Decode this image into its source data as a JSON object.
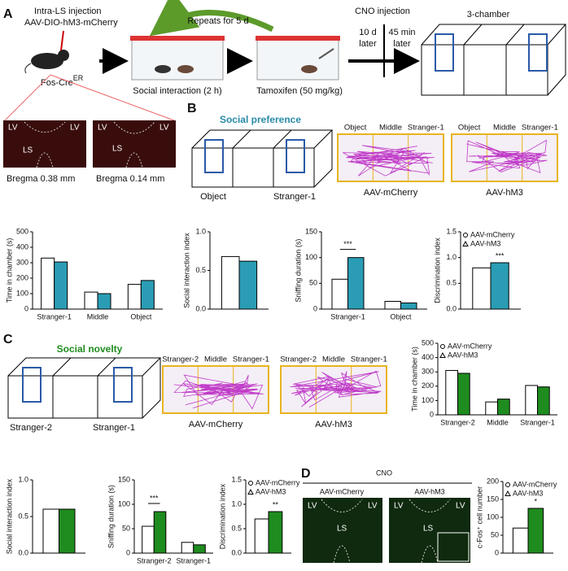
{
  "panel_a": {
    "letter": "A",
    "injection": "Intra-LS injection",
    "virus": "AAV-DIO-hM3-mCherry",
    "mouse_line": "Fos-Cre",
    "mouse_line_sup": "ER",
    "repeats": "Repeats for 5 d",
    "social_interaction": "Social interaction (2 h)",
    "tamoxifen": "Tamoxifen (50 mg/kg)",
    "cno": "CNO injection",
    "delay_1": [
      "10 d",
      "later"
    ],
    "delay_2": [
      "45 min",
      "later"
    ],
    "test": "3-chamber",
    "images": [
      {
        "labels": [
          "LV",
          "LV",
          "LS"
        ],
        "caption": "Bregma 0.38 mm"
      },
      {
        "labels": [
          "LV",
          "LV",
          "LS"
        ],
        "caption": "Bregma 0.14 mm"
      }
    ]
  },
  "panel_b": {
    "letter": "B",
    "title": "Social preference",
    "chambers": [
      "Object",
      "Stranger-1"
    ],
    "tracks": [
      {
        "zones": [
          "Object",
          "Middle",
          "Stranger-1"
        ],
        "caption": "AAV-mCherry"
      },
      {
        "zones": [
          "Object",
          "Middle",
          "Stranger-1"
        ],
        "caption": "AAV-hM3"
      }
    ]
  },
  "panel_c": {
    "letter": "C",
    "title": "Social novelty",
    "chambers": [
      "Stranger-2",
      "Stranger-1"
    ],
    "tracks": [
      {
        "zones": [
          "Stranger-2",
          "Middle",
          "Stranger-1"
        ],
        "caption": "AAV-mCherry"
      },
      {
        "zones": [
          "Stranger-2",
          "Middle",
          "Stranger-1"
        ],
        "caption": "AAV-hM3"
      }
    ]
  },
  "panel_d": {
    "letter": "D",
    "treatment": "CNO",
    "images": [
      {
        "labels": [
          "LV",
          "LV",
          "LS"
        ],
        "caption": "AAV-mCherry"
      },
      {
        "labels": [
          "LV",
          "LV",
          "LS"
        ],
        "caption": "AAV-hM3"
      }
    ]
  },
  "chart_data": [
    {
      "type": "bar",
      "y_label": "Time in chamber (s)",
      "categories": [
        "Stranger-1",
        "Middle",
        "Object"
      ],
      "series": [
        {
          "name": "AAV-mCherry",
          "color": "#ffffff",
          "values": [
            330,
            110,
            160
          ]
        },
        {
          "name": "AAV-hM3",
          "color": "#2a9db5",
          "values": [
            305,
            100,
            185
          ]
        }
      ],
      "ylim": [
        0,
        500
      ],
      "yticks": [
        0,
        100,
        200,
        300,
        400,
        500
      ]
    },
    {
      "type": "bar",
      "y_label": "Social interaction index",
      "categories": [
        null
      ],
      "series": [
        {
          "name": "AAV-mCherry",
          "color": "#ffffff",
          "values": [
            0.68
          ]
        },
        {
          "name": "AAV-hM3",
          "color": "#2a9db5",
          "values": [
            0.62
          ]
        }
      ],
      "ylim": [
        0,
        1
      ],
      "yticks": [
        {
          "value": 0,
          "label": "0.0"
        },
        0.5,
        {
          "value": 1,
          "label": "1.0"
        }
      ]
    },
    {
      "type": "bar",
      "y_label": "Sniffing duration (s)",
      "categories": [
        "Stranger-1",
        "Object"
      ],
      "series": [
        {
          "name": "AAV-mCherry",
          "color": "#ffffff",
          "values": [
            58,
            15
          ]
        },
        {
          "name": "AAV-hM3",
          "color": "#2a9db5",
          "values": [
            100,
            12
          ]
        }
      ],
      "ylim": [
        0,
        150
      ],
      "yticks": [
        0,
        50,
        100,
        150
      ],
      "annotation": "***"
    },
    {
      "type": "bar",
      "y_label": "Discrimination index",
      "categories": [
        null
      ],
      "series": [
        {
          "name": "AAV-mCherry",
          "color": "#ffffff",
          "values": [
            0.8
          ]
        },
        {
          "name": "AAV-hM3",
          "color": "#2a9db5",
          "values": [
            0.9
          ]
        }
      ],
      "ylim": [
        0,
        1.5
      ],
      "yticks": [
        {
          "value": 0,
          "label": "0.0"
        },
        0.5,
        {
          "value": 1,
          "label": "1.0"
        },
        1.5
      ],
      "annotation": "***",
      "legend": true
    },
    {
      "type": "bar",
      "y_label": "Time in chamber (s)",
      "categories": [
        "Stranger-2",
        "Middle",
        "Stranger-1"
      ],
      "series": [
        {
          "name": "AAV-mCherry",
          "color": "#ffffff",
          "values": [
            310,
            90,
            205
          ]
        },
        {
          "name": "AAV-hM3",
          "color": "#1e8c1e",
          "values": [
            290,
            110,
            195
          ]
        }
      ],
      "ylim": [
        0,
        500
      ],
      "yticks": [
        0,
        100,
        200,
        300,
        400,
        500
      ],
      "legend": true
    },
    {
      "type": "bar",
      "y_label": "Social interaction index",
      "categories": [
        null
      ],
      "series": [
        {
          "name": "AAV-mCherry",
          "color": "#ffffff",
          "values": [
            0.6
          ]
        },
        {
          "name": "AAV-hM3",
          "color": "#1e8c1e",
          "values": [
            0.6
          ]
        }
      ],
      "ylim": [
        0,
        1
      ],
      "yticks": [
        {
          "value": 0,
          "label": "0.0"
        },
        0.5,
        {
          "value": 1,
          "label": "1.0"
        }
      ]
    },
    {
      "type": "bar",
      "y_label": "Sniffing duration (s)",
      "categories": [
        "Stranger-2",
        "Stranger-1"
      ],
      "series": [
        {
          "name": "AAV-mCherry",
          "color": "#ffffff",
          "values": [
            55,
            22
          ]
        },
        {
          "name": "AAV-hM3",
          "color": "#1e8c1e",
          "values": [
            85,
            17
          ]
        }
      ],
      "ylim": [
        0,
        150
      ],
      "yticks": [
        0,
        50,
        100,
        150
      ],
      "annotation": "***"
    },
    {
      "type": "bar",
      "y_label": "Discrimination index",
      "categories": [
        null
      ],
      "series": [
        {
          "name": "AAV-mCherry",
          "color": "#ffffff",
          "values": [
            0.7
          ]
        },
        {
          "name": "AAV-hM3",
          "color": "#1e8c1e",
          "values": [
            0.85
          ]
        }
      ],
      "ylim": [
        0,
        1.5
      ],
      "yticks": [
        {
          "value": 0,
          "label": "0.0"
        },
        0.5,
        {
          "value": 1,
          "label": "1.0"
        },
        1.5
      ],
      "annotation": "**",
      "legend": true
    },
    {
      "type": "bar",
      "y_label": "c-Fos⁺ cell number",
      "categories": [
        null
      ],
      "series": [
        {
          "name": "AAV-mCherry",
          "color": "#ffffff",
          "values": [
            70
          ]
        },
        {
          "name": "AAV-hM3",
          "color": "#1e8c1e",
          "values": [
            125
          ]
        }
      ],
      "ylim": [
        0,
        200
      ],
      "yticks": [
        0,
        50,
        100,
        150,
        200
      ],
      "annotation": "*",
      "legend": true
    }
  ]
}
